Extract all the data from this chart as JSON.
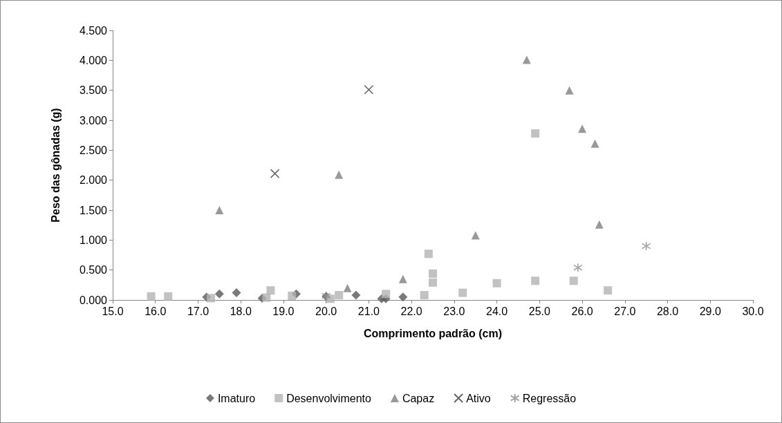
{
  "chart_data": {
    "type": "scatter",
    "xlabel": "Comprimento padrão (cm)",
    "ylabel": "Peso das gônadas (g)",
    "xlim": [
      15,
      30
    ],
    "xticks": [
      {
        "value": 15,
        "label": "15.0"
      },
      {
        "value": 16,
        "label": "16.0"
      },
      {
        "value": 17,
        "label": "17.0"
      },
      {
        "value": 18,
        "label": "18.0"
      },
      {
        "value": 19,
        "label": "19.0"
      },
      {
        "value": 20,
        "label": "20.0"
      },
      {
        "value": 21,
        "label": "21.0"
      },
      {
        "value": 22,
        "label": "22.0"
      },
      {
        "value": 23,
        "label": "23.0"
      },
      {
        "value": 24,
        "label": "24.0"
      },
      {
        "value": 25,
        "label": "25.0"
      },
      {
        "value": 26,
        "label": "26.0"
      },
      {
        "value": 27,
        "label": "27.0"
      },
      {
        "value": 28,
        "label": "28.0"
      },
      {
        "value": 29,
        "label": "29.0"
      },
      {
        "value": 30,
        "label": "30.0"
      }
    ],
    "ylim": [
      0,
      4.5
    ],
    "yticks": [
      {
        "value": 0,
        "label": "0.000"
      },
      {
        "value": 0.5,
        "label": "0.500"
      },
      {
        "value": 1,
        "label": "1.000"
      },
      {
        "value": 1.5,
        "label": "1.500"
      },
      {
        "value": 2,
        "label": "2.000"
      },
      {
        "value": 2.5,
        "label": "2.500"
      },
      {
        "value": 3,
        "label": "3.000"
      },
      {
        "value": 3.5,
        "label": "3.500"
      },
      {
        "value": 4,
        "label": "4.000"
      },
      {
        "value": 4.5,
        "label": "4.500"
      }
    ],
    "grid": false,
    "legend": "bottom",
    "series": [
      {
        "name": "Imaturo",
        "color": "#595959",
        "marker": "diamond",
        "x": [
          17.2,
          17.5,
          17.9,
          18.5,
          19.3,
          20.0,
          20.7,
          21.3,
          21.4,
          21.8
        ],
        "values": [
          0.05,
          0.1,
          0.12,
          0.03,
          0.1,
          0.06,
          0.08,
          0.02,
          0.02,
          0.05
        ]
      },
      {
        "name": "Desenvolvimento",
        "color": "#b3b3b3",
        "marker": "square",
        "x": [
          15.9,
          16.3,
          17.3,
          18.6,
          18.7,
          19.2,
          20.1,
          20.3,
          21.4,
          22.3,
          22.4,
          22.5,
          22.5,
          23.2,
          24.0,
          24.9,
          25.8,
          26.6,
          24.9
        ],
        "values": [
          0.06,
          0.06,
          0.03,
          0.04,
          0.16,
          0.07,
          0.02,
          0.08,
          0.1,
          0.08,
          0.77,
          0.44,
          0.29,
          0.12,
          0.28,
          0.32,
          0.32,
          0.16,
          2.78
        ]
      },
      {
        "name": "Capaz",
        "color": "#808080",
        "marker": "triangle",
        "x": [
          17.5,
          20.3,
          20.5,
          21.8,
          23.5,
          24.7,
          25.7,
          26.0,
          26.3,
          26.4
        ],
        "values": [
          1.5,
          2.09,
          0.2,
          0.35,
          1.08,
          4.01,
          3.5,
          2.86,
          2.61,
          1.26
        ]
      },
      {
        "name": "Ativo",
        "color": "#404040",
        "marker": "cross",
        "x": [
          18.8,
          21.0
        ],
        "values": [
          2.11,
          3.51
        ]
      },
      {
        "name": "Regressão",
        "color": "#8c8c8c",
        "marker": "cross",
        "x": [
          20.0,
          25.9,
          27.5
        ],
        "values": [
          0.07,
          0.54,
          0.9
        ]
      }
    ]
  }
}
